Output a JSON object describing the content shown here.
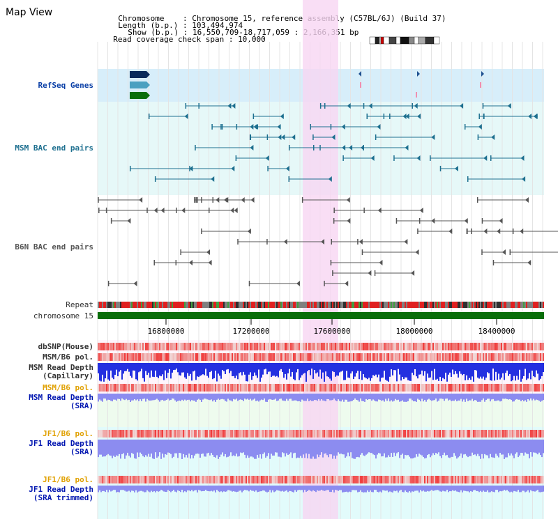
{
  "window": {
    "title": "Map View"
  },
  "header": {
    "chromosome_label": "Chromosome    :",
    "chromosome_value": "Chromosome 15, reference assembly (C57BL/6J) (Build 37)",
    "length_label": "Length (b.p.) :",
    "length_value": "103,494,974",
    "show_label": "Show (b.p.) :",
    "show_value": "16,550,709-18,717,059 : 2,166,351 bp",
    "coverage_label": "Read coverage check span :",
    "coverage_value": "10,000"
  },
  "tracks": {
    "refseq": "RefSeq Genes",
    "msm_bac": "MSM BAC end pairs",
    "b6n_bac": "B6N BAC end pairs",
    "repeat": "Repeat",
    "chromosome": "chromosome 15",
    "dbsnp": "dbSNP(Mouse)",
    "msm_b6_pol_1": "MSM/B6 pol.",
    "msm_depth_cap_1": "MSM Read Depth",
    "msm_depth_cap_2": "(Capillary)",
    "msm_b6_pol_2": "MSM/B6 pol.",
    "msm_depth_sra_1": "MSM Read Depth",
    "msm_depth_sra_2": "(SRA)",
    "jf1_b6_pol_1": "JF1/B6 pol.",
    "jf1_depth_1": "JF1 Read Depth",
    "jf1_depth_2": "(SRA)",
    "jf1_b6_pol_2": "JF1/B6 pol.",
    "jf1_trim_1": "JF1 Read Depth",
    "jf1_trim_2": "(SRA trimmed)"
  },
  "axis": {
    "ticks": [
      "16800000",
      "17200000",
      "17600000",
      "18000000",
      "18400000"
    ]
  },
  "colors": {
    "highlight": "#f7d6f2",
    "refseq_bg": "#d7eefa",
    "msm_bg": "#e6f8f8",
    "repeat_red": "#e02020",
    "chrom_green": "#0a6e0a",
    "snp_red": "#e63030",
    "depth_blue": "#2430e0",
    "depth_light": "#8c8cf0",
    "msm_sra_bg": "#eefbee",
    "jf1_bg": "#e2fbfb"
  }
}
